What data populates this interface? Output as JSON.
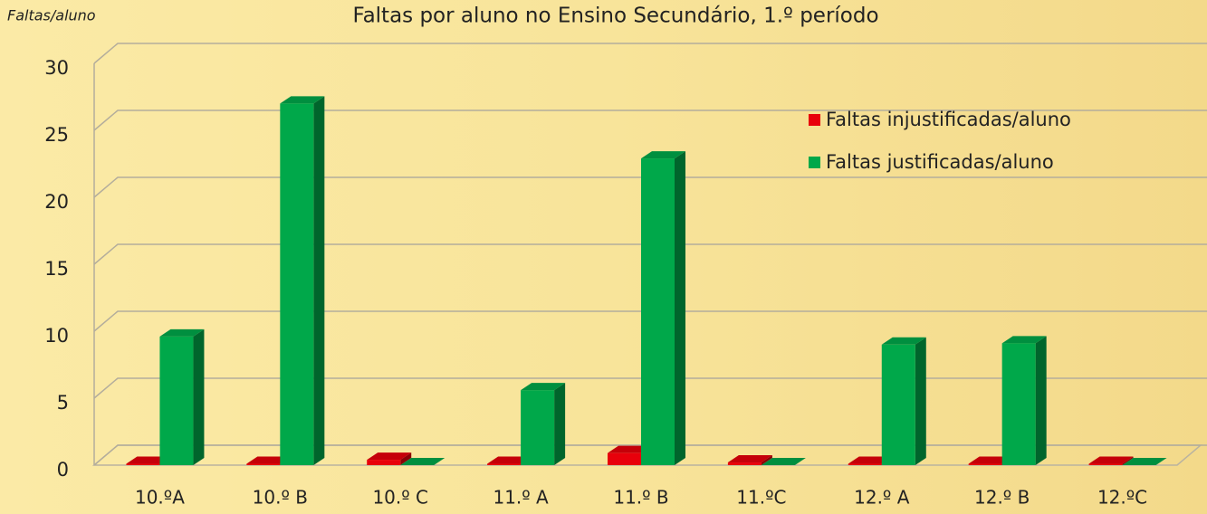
{
  "chart_data": {
    "type": "bar3d",
    "title": "Faltas por aluno no Ensino Secundário, 1.º período",
    "y_label": "Faltas/aluno",
    "categories": [
      "10.ºA",
      "10.º B",
      "10.º C",
      "11.º A",
      "11.º B",
      "11.ºC",
      "12.º A",
      "12.º B",
      "12.ºC"
    ],
    "series": [
      {
        "name": "Faltas injustificadas/aluno",
        "color": "#e8000b",
        "values": [
          0.1,
          0.1,
          0.4,
          0.1,
          0.9,
          0.2,
          0.1,
          0.1,
          0.1
        ]
      },
      {
        "name": "Faltas justificadas/aluno",
        "color": "#00a84a",
        "values": [
          9.6,
          27,
          0,
          5.6,
          22.9,
          0,
          9,
          9.1,
          0
        ]
      }
    ],
    "ylim": [
      0,
      30
    ],
    "yticks": [
      0,
      5,
      10,
      15,
      20,
      25,
      30
    ],
    "grid": true,
    "legend": "upper right"
  }
}
